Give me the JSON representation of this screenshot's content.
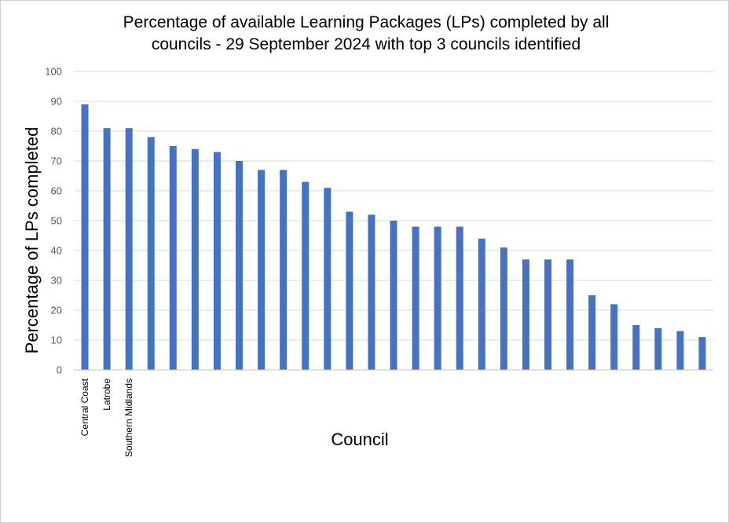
{
  "chart_data": {
    "type": "bar",
    "title_lines": [
      "Percentage of available Learning Packages (LPs) completed by all",
      "councils - 29 September 2024 with top 3 councils identified"
    ],
    "xlabel": "Council",
    "ylabel": "Percentage of LPs completed",
    "ylim": [
      0,
      100
    ],
    "yticks": [
      0,
      10,
      20,
      30,
      40,
      50,
      60,
      70,
      80,
      90,
      100
    ],
    "grid": true,
    "legend": "none",
    "bar_color": "#4472c4",
    "categories": [
      "Central Coast",
      "Latrobe",
      "Southern Midlands",
      "",
      "",
      "",
      "",
      "",
      "",
      "",
      "",
      "",
      "",
      "",
      "",
      "",
      "",
      "",
      "",
      "",
      "",
      "",
      "",
      "",
      "",
      "",
      "",
      "",
      ""
    ],
    "values": [
      89,
      81,
      81,
      78,
      75,
      74,
      73,
      70,
      67,
      67,
      63,
      61,
      53,
      52,
      50,
      48,
      48,
      48,
      44,
      41,
      37,
      37,
      37,
      25,
      22,
      15,
      14,
      13,
      11
    ]
  }
}
